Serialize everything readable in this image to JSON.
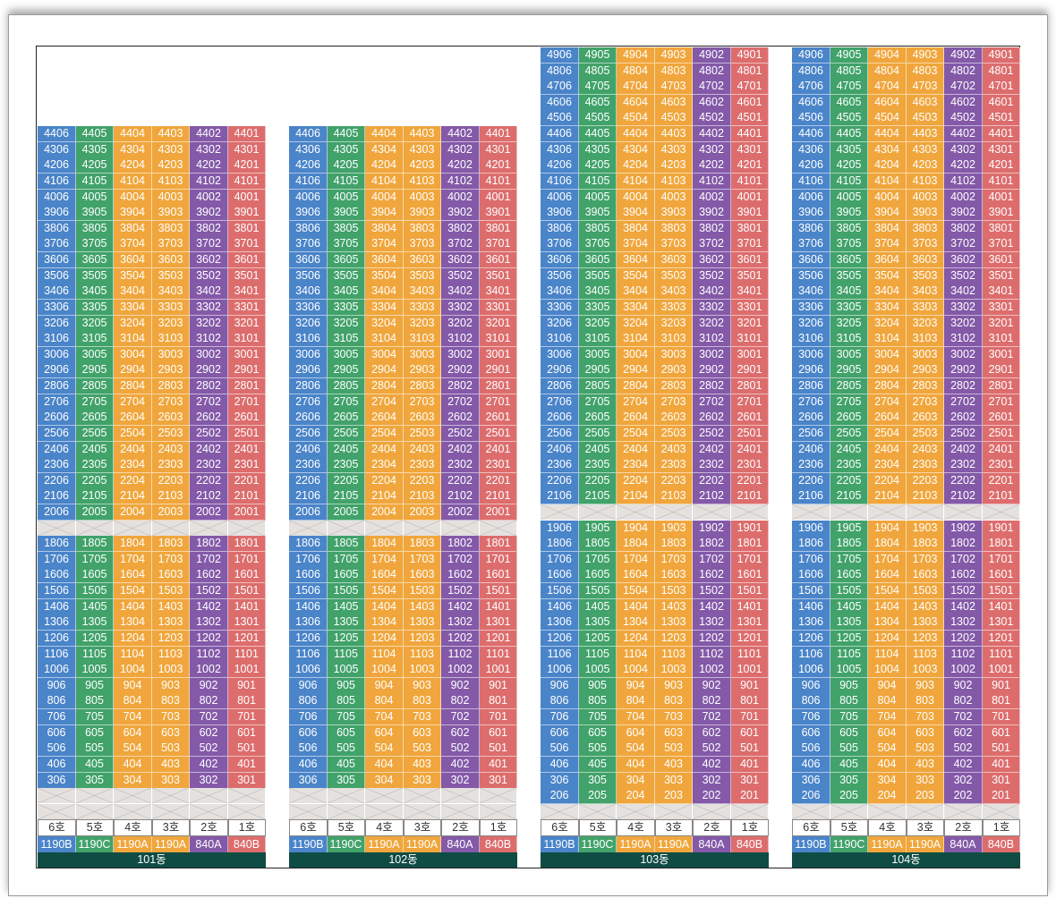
{
  "buildings": [
    {
      "name": "101동",
      "top_floor": 44,
      "bottom_floor": 3,
      "skip_floors": [
        19
      ],
      "empty_floors": [
        1,
        2
      ],
      "units": [
        "6호",
        "5호",
        "4호",
        "3호",
        "2호",
        "1호"
      ],
      "types": [
        "1190B",
        "1190C",
        "1190A",
        "1190A",
        "840A",
        "840B"
      ]
    },
    {
      "name": "102동",
      "top_floor": 44,
      "bottom_floor": 3,
      "skip_floors": [
        19
      ],
      "empty_floors": [
        1,
        2
      ],
      "units": [
        "6호",
        "5호",
        "4호",
        "3호",
        "2호",
        "1호"
      ],
      "types": [
        "1190B",
        "1190C",
        "1190A",
        "1190A",
        "840A",
        "840B"
      ]
    },
    {
      "name": "103동",
      "top_floor": 49,
      "bottom_floor": 2,
      "skip_floors": [
        20
      ],
      "empty_floors": [
        1
      ],
      "units": [
        "6호",
        "5호",
        "4호",
        "3호",
        "2호",
        "1호"
      ],
      "types": [
        "1190B",
        "1190C",
        "1190A",
        "1190A",
        "840A",
        "840B"
      ]
    },
    {
      "name": "104동",
      "top_floor": 49,
      "bottom_floor": 2,
      "skip_floors": [
        20
      ],
      "empty_floors": [
        1
      ],
      "units": [
        "6호",
        "5호",
        "4호",
        "3호",
        "2호",
        "1호"
      ],
      "types": [
        "1190B",
        "1190C",
        "1190A",
        "1190A",
        "840A",
        "840B"
      ]
    }
  ],
  "colors": {
    "unit6": "#4a84c9",
    "unit5": "#41a26a",
    "unit4": "#f0a63c",
    "unit3": "#f0a63c",
    "unit2": "#8359a8",
    "unit1": "#dd6d6d",
    "building_label_bg": "#0f4d44"
  }
}
